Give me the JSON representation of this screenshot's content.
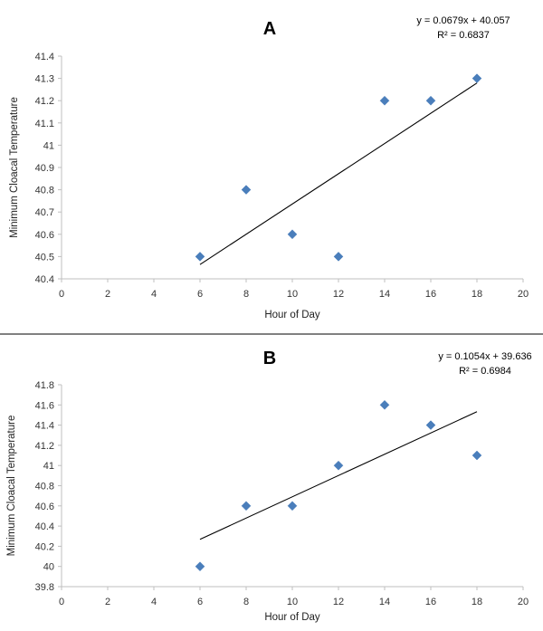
{
  "chart_data": [
    {
      "type": "scatter",
      "title": "A",
      "xlabel": "Hour of Day",
      "ylabel": "Minimum Cloacal Temperature",
      "xlim": [
        0,
        20
      ],
      "ylim": [
        40.4,
        41.4
      ],
      "x_ticks": [
        "0",
        "2",
        "4",
        "6",
        "8",
        "10",
        "12",
        "14",
        "16",
        "18",
        "20"
      ],
      "y_ticks": [
        "40.4",
        "40.5",
        "40.6",
        "40.7",
        "40.8",
        "40.9",
        "41",
        "41.1",
        "41.2",
        "41.3",
        "41.4"
      ],
      "grid": false,
      "marker_color": "#4a7ebb",
      "points": [
        {
          "x": 6,
          "y": 40.5
        },
        {
          "x": 8,
          "y": 40.8
        },
        {
          "x": 10,
          "y": 40.6
        },
        {
          "x": 12,
          "y": 40.5
        },
        {
          "x": 14,
          "y": 41.2
        },
        {
          "x": 16,
          "y": 41.2
        },
        {
          "x": 18,
          "y": 41.3
        }
      ],
      "trendline": {
        "slope": 0.0679,
        "intercept": 40.057,
        "x_range": [
          6,
          18
        ],
        "equation": "y = 0.0679x + 40.057",
        "r_squared": "R² = 0.6837"
      }
    },
    {
      "type": "scatter",
      "title": "B",
      "xlabel": "Hour of Day",
      "ylabel": "Minimum Cloacal Temperature",
      "xlim": [
        0,
        20
      ],
      "ylim": [
        39.8,
        41.8
      ],
      "x_ticks": [
        "0",
        "2",
        "4",
        "6",
        "8",
        "10",
        "12",
        "14",
        "16",
        "18",
        "20"
      ],
      "y_ticks": [
        "39.8",
        "40",
        "40.2",
        "40.4",
        "40.6",
        "40.8",
        "41",
        "41.2",
        "41.4",
        "41.6",
        "41.8"
      ],
      "grid": false,
      "marker_color": "#4a7ebb",
      "points": [
        {
          "x": 6,
          "y": 40.0
        },
        {
          "x": 8,
          "y": 40.6
        },
        {
          "x": 10,
          "y": 40.6
        },
        {
          "x": 12,
          "y": 41.0
        },
        {
          "x": 14,
          "y": 41.6
        },
        {
          "x": 16,
          "y": 41.4
        },
        {
          "x": 18,
          "y": 41.1
        }
      ],
      "trendline": {
        "slope": 0.1054,
        "intercept": 39.636,
        "x_range": [
          6,
          18
        ],
        "equation": "y = 0.1054x + 39.636",
        "r_squared": "R² = 0.6984"
      }
    }
  ]
}
